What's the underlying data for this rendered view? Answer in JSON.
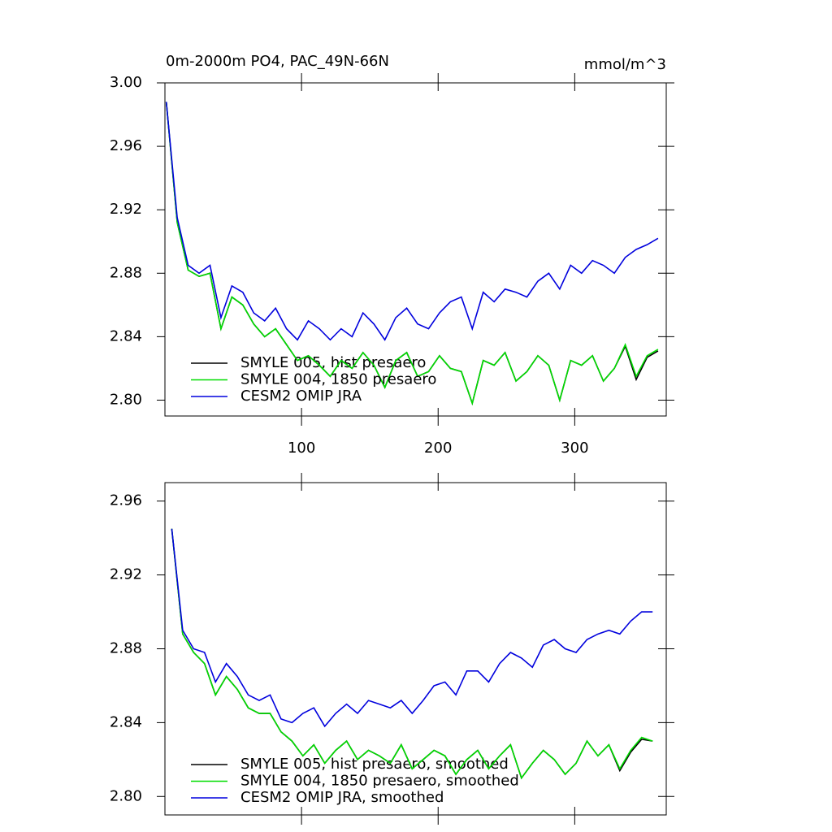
{
  "chart_data": [
    {
      "type": "line",
      "title": "0m-2000m PO4, PAC_49N-66N",
      "units": "mmol/m^3",
      "xlim": [
        0,
        367
      ],
      "xticks": [
        100,
        200,
        300
      ],
      "show_xtick_labels": true,
      "ylim": [
        2.79,
        3.0
      ],
      "yticks": [
        {
          "value": 2.8,
          "label": "2.80"
        },
        2.84,
        2.88,
        2.92,
        2.96,
        {
          "value": 3.0,
          "label": "3.00"
        }
      ],
      "x": [
        1,
        9,
        17,
        25,
        33,
        41,
        49,
        57,
        65,
        73,
        81,
        89,
        97,
        105,
        113,
        121,
        129,
        137,
        145,
        153,
        161,
        169,
        177,
        185,
        193,
        201,
        209,
        217,
        225,
        233,
        241,
        249,
        257,
        265,
        273,
        281,
        289,
        297,
        305,
        313,
        321,
        329,
        337,
        345,
        353,
        361
      ],
      "series": [
        {
          "name": "SMYLE 005, hist presaero",
          "color": "#000000",
          "values": [
            2.988,
            2.912,
            2.882,
            2.878,
            2.88,
            2.845,
            2.865,
            2.86,
            2.848,
            2.84,
            2.845,
            2.835,
            2.825,
            2.828,
            2.822,
            2.815,
            2.825,
            2.82,
            2.83,
            2.822,
            2.808,
            2.825,
            2.83,
            2.815,
            2.818,
            2.828,
            2.82,
            2.818,
            2.798,
            2.825,
            2.822,
            2.83,
            2.812,
            2.818,
            2.828,
            2.822,
            2.8,
            2.825,
            2.822,
            2.828,
            2.812,
            2.82,
            2.834,
            2.813,
            2.827,
            2.831
          ]
        },
        {
          "name": "SMYLE 004, 1850 presaero",
          "color": "#00dd00",
          "values": [
            2.988,
            2.912,
            2.882,
            2.878,
            2.88,
            2.845,
            2.865,
            2.86,
            2.848,
            2.84,
            2.845,
            2.835,
            2.825,
            2.828,
            2.822,
            2.815,
            2.825,
            2.82,
            2.83,
            2.822,
            2.808,
            2.825,
            2.83,
            2.815,
            2.818,
            2.828,
            2.82,
            2.818,
            2.798,
            2.825,
            2.822,
            2.83,
            2.812,
            2.818,
            2.828,
            2.822,
            2.8,
            2.825,
            2.822,
            2.828,
            2.812,
            2.82,
            2.835,
            2.815,
            2.828,
            2.832
          ]
        },
        {
          "name": "CESM2 OMIP JRA",
          "color": "#0000dd",
          "values": [
            2.988,
            2.915,
            2.885,
            2.88,
            2.885,
            2.852,
            2.872,
            2.868,
            2.855,
            2.85,
            2.858,
            2.845,
            2.838,
            2.85,
            2.845,
            2.838,
            2.845,
            2.84,
            2.855,
            2.848,
            2.838,
            2.852,
            2.858,
            2.848,
            2.845,
            2.855,
            2.862,
            2.865,
            2.845,
            2.868,
            2.862,
            2.87,
            2.868,
            2.865,
            2.875,
            2.88,
            2.87,
            2.885,
            2.88,
            2.888,
            2.885,
            2.88,
            2.89,
            2.895,
            2.898,
            2.902
          ]
        }
      ]
    },
    {
      "type": "line",
      "xlim": [
        0,
        367
      ],
      "xticks": [
        100,
        200,
        300
      ],
      "show_xtick_labels": false,
      "ylim": [
        2.79,
        2.97
      ],
      "yticks": [
        {
          "value": 2.8,
          "label": "2.80"
        },
        2.84,
        2.88,
        2.92,
        2.96
      ],
      "x": [
        5,
        13,
        21,
        29,
        37,
        45,
        53,
        61,
        69,
        77,
        85,
        93,
        101,
        109,
        117,
        125,
        133,
        141,
        149,
        157,
        165,
        173,
        181,
        189,
        197,
        205,
        213,
        221,
        229,
        237,
        245,
        253,
        261,
        269,
        277,
        285,
        293,
        301,
        309,
        317,
        325,
        333,
        341,
        349,
        357
      ],
      "series": [
        {
          "name": "SMYLE 005, hist presaero, smoothed",
          "color": "#000000",
          "values": [
            2.945,
            2.888,
            2.878,
            2.872,
            2.855,
            2.865,
            2.858,
            2.848,
            2.845,
            2.845,
            2.835,
            2.83,
            2.822,
            2.828,
            2.818,
            2.825,
            2.83,
            2.82,
            2.825,
            2.822,
            2.818,
            2.828,
            2.815,
            2.82,
            2.825,
            2.822,
            2.812,
            2.82,
            2.825,
            2.815,
            2.822,
            2.828,
            2.81,
            2.818,
            2.825,
            2.82,
            2.812,
            2.818,
            2.83,
            2.822,
            2.828,
            2.814,
            2.824,
            2.831,
            2.83
          ]
        },
        {
          "name": "SMYLE 004, 1850 presaero, smoothed",
          "color": "#00dd00",
          "values": [
            2.945,
            2.888,
            2.878,
            2.872,
            2.855,
            2.865,
            2.858,
            2.848,
            2.845,
            2.845,
            2.835,
            2.83,
            2.822,
            2.828,
            2.818,
            2.825,
            2.83,
            2.82,
            2.825,
            2.822,
            2.818,
            2.828,
            2.815,
            2.82,
            2.825,
            2.822,
            2.812,
            2.82,
            2.825,
            2.815,
            2.822,
            2.828,
            2.81,
            2.818,
            2.825,
            2.82,
            2.812,
            2.818,
            2.83,
            2.822,
            2.828,
            2.815,
            2.825,
            2.832,
            2.83
          ]
        },
        {
          "name": "CESM2 OMIP JRA, smoothed",
          "color": "#0000dd",
          "values": [
            2.945,
            2.89,
            2.88,
            2.878,
            2.862,
            2.872,
            2.865,
            2.855,
            2.852,
            2.855,
            2.842,
            2.84,
            2.845,
            2.848,
            2.838,
            2.845,
            2.85,
            2.845,
            2.852,
            2.85,
            2.848,
            2.852,
            2.845,
            2.852,
            2.86,
            2.862,
            2.855,
            2.868,
            2.868,
            2.862,
            2.872,
            2.878,
            2.875,
            2.87,
            2.882,
            2.885,
            2.88,
            2.878,
            2.885,
            2.888,
            2.89,
            2.888,
            2.895,
            2.9,
            2.9
          ]
        }
      ]
    }
  ]
}
